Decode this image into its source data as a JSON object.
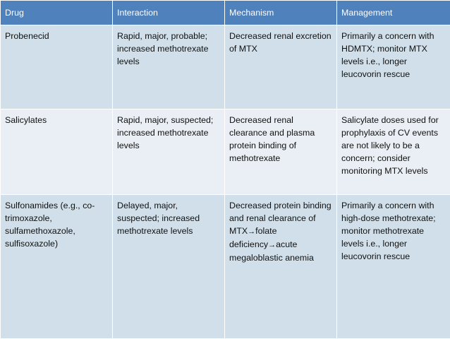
{
  "columns": [
    "Drug",
    "Interaction",
    "Mechanism",
    "Management"
  ],
  "rows": [
    {
      "drug": "Probenecid",
      "interaction": "Rapid, major, probable; increased methotrexate levels",
      "mechanism": "Decreased renal excretion of MTX",
      "management": "Primarily a concern with HDMTX; monitor MTX levels i.e., longer leucovorin rescue"
    },
    {
      "drug": "Salicylates",
      "interaction": "Rapid, major, suspected; increased methotrexate levels",
      "mechanism": "Decreased renal clearance and plasma protein binding of methotrexate",
      "management": "Salicylate doses used for prophylaxis of CV events are not likely to be a concern; consider monitoring MTX levels"
    },
    {
      "drug": "Sulfonamides (e.g., co-trimoxazole, sulfamethoxazole, sulfisoxazole)",
      "interaction": "Delayed, major, suspected; increased methotrexate levels",
      "mechanism_part1": "Decreased protein binding and renal clearance of MTX",
      "mechanism_arrow1": "→",
      "mechanism_part2": "folate deficiency",
      "mechanism_arrow2": "→",
      "mechanism_part3": "acute megaloblastic anemia",
      "management": "Primarily a concern with high-dose methotrexate; monitor methotrexate levels i.e., longer leucovorin rescue"
    }
  ],
  "colors": {
    "header_bg": "#4f81bd",
    "row_dark_bg": "#d0dfe9",
    "row_light_bg": "#e9eff4"
  }
}
